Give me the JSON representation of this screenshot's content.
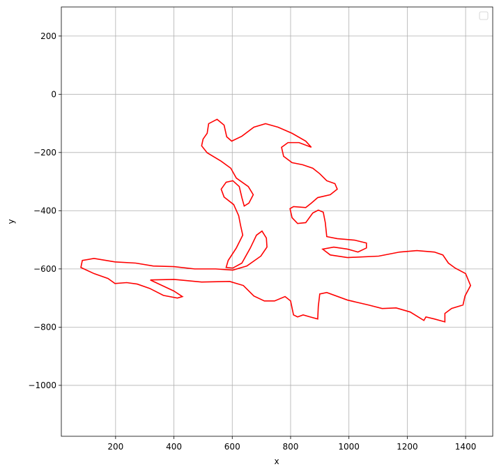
{
  "chart_data": {
    "type": "line",
    "xlabel": "x",
    "ylabel": "y",
    "color": "#ff0000",
    "grid": true,
    "legend": "upper right",
    "xlim": [
      14,
      1493
    ],
    "ylim": [
      -1175,
      300
    ],
    "xticks": [
      200,
      400,
      600,
      800,
      1000,
      1200,
      1400
    ],
    "yticks": [
      {
        "value": -1000,
        "label": "−1000"
      },
      {
        "value": -800,
        "label": "−800"
      },
      {
        "value": -600,
        "label": "−600"
      },
      {
        "value": -400,
        "label": "−400"
      },
      {
        "value": -200,
        "label": "−200"
      },
      0,
      200
    ],
    "x": [
      319,
      400,
      495,
      591,
      638,
      674,
      710,
      745,
      781,
      800,
      810,
      824,
      843,
      867,
      893,
      895,
      900,
      924,
      995,
      1067,
      1114,
      1162,
      1210,
      1257,
      1264,
      1293,
      1329,
      1329,
      1352,
      1391,
      1398,
      1417,
      1400,
      1364,
      1341,
      1322,
      1293,
      1233,
      1174,
      1102,
      995,
      936,
      910,
      948,
      995,
      1031,
      1060,
      1060,
      1019,
      960,
      924,
      919,
      912,
      895,
      876,
      852,
      824,
      805,
      798,
      810,
      852,
      871,
      893,
      936,
      960,
      952,
      924,
      900,
      876,
      841,
      805,
      776,
      769,
      791,
      829,
      871,
      852,
      805,
      757,
      714,
      674,
      633,
      598,
      581,
      572,
      548,
      519,
      514,
      500,
      495,
      514,
      562,
      595,
      614,
      655,
      672,
      657,
      641,
      633,
      624,
      602,
      579,
      562,
      572,
      605,
      622,
      629,
      636,
      614,
      586,
      579,
      602,
      633,
      662,
      683,
      702,
      717,
      719,
      698,
      650,
      602,
      543,
      471,
      400,
      329,
      269,
      198,
      126,
      86,
      81,
      126,
      174,
      198,
      238,
      274,
      317,
      364,
      412,
      429,
      400,
      319
    ],
    "values": [
      -638,
      -636,
      -645,
      -643,
      -657,
      -693,
      -710,
      -710,
      -695,
      -710,
      -758,
      -765,
      -758,
      -765,
      -772,
      -729,
      -686,
      -681,
      -707,
      -724,
      -736,
      -734,
      -748,
      -777,
      -765,
      -772,
      -782,
      -753,
      -736,
      -724,
      -693,
      -657,
      -616,
      -597,
      -580,
      -552,
      -542,
      -537,
      -542,
      -556,
      -561,
      -552,
      -532,
      -525,
      -532,
      -542,
      -528,
      -511,
      -501,
      -496,
      -489,
      -441,
      -405,
      -398,
      -408,
      -441,
      -444,
      -424,
      -393,
      -386,
      -389,
      -374,
      -355,
      -345,
      -326,
      -307,
      -297,
      -273,
      -254,
      -242,
      -235,
      -213,
      -182,
      -166,
      -166,
      -182,
      -161,
      -134,
      -113,
      -101,
      -113,
      -144,
      -161,
      -146,
      -106,
      -86,
      -101,
      -134,
      -154,
      -177,
      -201,
      -230,
      -254,
      -288,
      -317,
      -345,
      -374,
      -384,
      -355,
      -317,
      -297,
      -302,
      -326,
      -353,
      -379,
      -417,
      -453,
      -484,
      -528,
      -571,
      -595,
      -597,
      -580,
      -528,
      -484,
      -470,
      -494,
      -525,
      -556,
      -590,
      -604,
      -600,
      -600,
      -592,
      -590,
      -580,
      -576,
      -564,
      -571,
      -595,
      -616,
      -633,
      -650,
      -647,
      -652,
      -667,
      -691,
      -700,
      -695,
      -676,
      -638
    ]
  }
}
